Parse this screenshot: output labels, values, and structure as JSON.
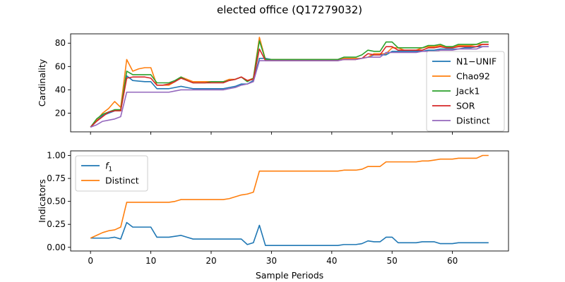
{
  "suptitle": "elected office (Q17279032)",
  "chart_data": [
    {
      "type": "line",
      "title": "",
      "xlabel": "",
      "ylabel": "Cardinality",
      "xlim": [
        -3.3,
        69.3
      ],
      "ylim": [
        4,
        88
      ],
      "xticks": [
        0,
        10,
        20,
        30,
        40,
        50,
        60
      ],
      "yticks": [
        20,
        40,
        60,
        80
      ],
      "ytick_labels": [
        "20",
        "40",
        "60",
        "80"
      ],
      "legend_position": "lower-right",
      "series": [
        {
          "name": "N1−UNIF",
          "color": "#1f77b4",
          "values": [
            8,
            13,
            18,
            20,
            22,
            22,
            52,
            48,
            47.5,
            47,
            47,
            41,
            41,
            41,
            42,
            43,
            42,
            41,
            41,
            41,
            41,
            41,
            41,
            42,
            43,
            45,
            45,
            48,
            67,
            67,
            66,
            66,
            66,
            66,
            66,
            66,
            66,
            66,
            66,
            66,
            66,
            66,
            66,
            67,
            67,
            67,
            68,
            70,
            70,
            70,
            73,
            73,
            73,
            73,
            73,
            73,
            74,
            74,
            75,
            75,
            75,
            75,
            76,
            76,
            77,
            77,
            77
          ]
        },
        {
          "name": "Chao92",
          "color": "#ff7f0e",
          "values": [
            8,
            14,
            20,
            24,
            30,
            25,
            66,
            56,
            58,
            59,
            59,
            44,
            44,
            44,
            47,
            51,
            49,
            47,
            47,
            47,
            47,
            47,
            47,
            49,
            49,
            51,
            48,
            50,
            85,
            66,
            66,
            66,
            66,
            66,
            66,
            66,
            66,
            66,
            66,
            66,
            66,
            66,
            67,
            67,
            67,
            67,
            68,
            71,
            71,
            71,
            76,
            76,
            74,
            74,
            74,
            76,
            77,
            77,
            78,
            77,
            77,
            78,
            78,
            78,
            79,
            79,
            79
          ]
        },
        {
          "name": "Jack1",
          "color": "#2ca02c",
          "values": [
            8,
            15,
            19,
            21,
            23,
            23,
            56,
            53,
            53,
            53,
            53,
            46,
            46,
            46,
            48,
            51,
            48,
            46,
            46,
            46,
            47,
            47,
            47,
            48,
            49,
            51,
            47,
            50,
            82,
            66,
            66,
            66,
            66,
            66,
            66,
            66,
            66,
            66,
            66,
            66,
            66,
            66,
            68,
            68,
            68,
            70,
            74,
            73,
            73,
            81,
            81,
            76,
            76,
            76,
            76,
            76,
            78,
            78,
            79,
            77,
            77,
            79,
            79,
            79,
            79,
            81,
            81
          ]
        },
        {
          "name": "SOR",
          "color": "#d62728",
          "values": [
            8,
            13,
            17,
            21,
            22,
            22,
            50,
            51,
            51,
            51,
            50,
            44,
            44,
            45,
            47,
            50,
            48,
            46,
            46,
            46,
            46,
            46,
            46,
            48,
            49,
            51,
            48,
            49,
            75,
            65,
            65,
            65,
            65,
            65,
            65,
            65,
            65,
            65,
            65,
            65,
            65,
            65,
            66,
            66,
            66,
            67,
            71,
            70,
            70,
            77,
            77,
            74,
            74,
            74,
            74,
            74,
            76,
            76,
            77,
            76,
            76,
            77,
            77,
            77,
            77,
            79,
            79
          ]
        },
        {
          "name": "Distinct",
          "color": "#9467bd",
          "values": [
            8,
            10,
            13,
            14,
            15,
            17,
            38,
            38,
            38,
            38,
            38,
            38,
            38,
            38,
            39,
            40,
            40,
            40,
            40,
            40,
            40,
            40,
            40,
            41,
            42,
            44,
            45,
            47,
            65,
            65,
            65,
            65,
            65,
            65,
            65,
            65,
            65,
            65,
            65,
            65,
            65,
            65,
            66,
            66,
            66,
            67,
            68,
            68,
            68,
            72,
            72,
            72,
            72,
            72,
            72,
            73,
            73,
            73,
            74,
            74,
            74,
            75,
            75,
            75,
            75,
            77,
            77
          ]
        }
      ]
    },
    {
      "type": "line",
      "title": "",
      "xlabel": "Sample Periods",
      "ylabel": "Indicators",
      "xlim": [
        -3.3,
        69.3
      ],
      "ylim": [
        -0.04,
        1.05
      ],
      "xticks": [
        0,
        10,
        20,
        30,
        40,
        50,
        60
      ],
      "yticks": [
        0,
        0.25,
        0.5,
        0.75,
        1.0
      ],
      "ytick_labels": [
        "0.00",
        "0.25",
        "0.50",
        "0.75",
        "1.00"
      ],
      "legend_position": "upper-left",
      "series": [
        {
          "name": "f1",
          "color": "#1f77b4",
          "values": [
            0.1,
            0.1,
            0.1,
            0.1,
            0.11,
            0.09,
            0.27,
            0.22,
            0.22,
            0.22,
            0.22,
            0.11,
            0.11,
            0.11,
            0.12,
            0.13,
            0.11,
            0.09,
            0.09,
            0.09,
            0.09,
            0.09,
            0.09,
            0.09,
            0.09,
            0.09,
            0.03,
            0.05,
            0.24,
            0.02,
            0.02,
            0.02,
            0.02,
            0.02,
            0.02,
            0.02,
            0.02,
            0.02,
            0.02,
            0.02,
            0.02,
            0.02,
            0.03,
            0.03,
            0.03,
            0.04,
            0.07,
            0.06,
            0.06,
            0.11,
            0.11,
            0.05,
            0.05,
            0.05,
            0.05,
            0.06,
            0.06,
            0.06,
            0.04,
            0.04,
            0.04,
            0.05,
            0.05,
            0.05,
            0.05,
            0.05,
            0.05
          ]
        },
        {
          "name": "Distinct",
          "color": "#ff7f0e",
          "values": [
            0.1,
            0.13,
            0.16,
            0.18,
            0.19,
            0.22,
            0.49,
            0.49,
            0.49,
            0.49,
            0.49,
            0.49,
            0.49,
            0.49,
            0.5,
            0.52,
            0.52,
            0.52,
            0.52,
            0.52,
            0.52,
            0.52,
            0.52,
            0.53,
            0.55,
            0.57,
            0.58,
            0.6,
            0.83,
            0.83,
            0.83,
            0.83,
            0.83,
            0.83,
            0.83,
            0.83,
            0.83,
            0.83,
            0.83,
            0.83,
            0.83,
            0.83,
            0.84,
            0.84,
            0.84,
            0.85,
            0.88,
            0.88,
            0.88,
            0.93,
            0.93,
            0.93,
            0.93,
            0.93,
            0.93,
            0.94,
            0.94,
            0.95,
            0.96,
            0.96,
            0.96,
            0.97,
            0.97,
            0.97,
            0.97,
            1.0,
            1.0
          ]
        }
      ]
    }
  ]
}
